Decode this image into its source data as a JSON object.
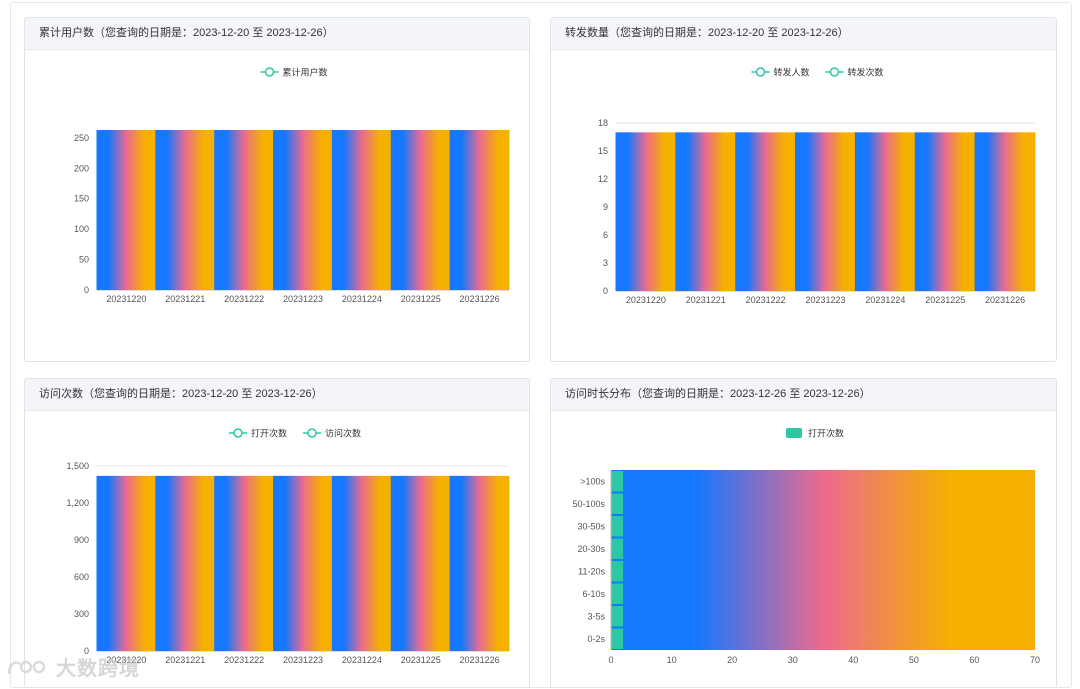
{
  "charts": {
    "c1": {
      "title": "累计用户数（您查询的日期是：2023-12-20 至 2023-12-26）",
      "chart_data": {
        "type": "bar",
        "categories": [
          "20231220",
          "20231221",
          "20231222",
          "20231223",
          "20231224",
          "20231225",
          "20231226"
        ],
        "series": [
          {
            "name": "累计用户数",
            "values": [
              263,
              263,
              263,
              263,
              263,
              263,
              263
            ]
          }
        ],
        "yticks": [
          "0",
          "50",
          "100",
          "150",
          "200",
          "250"
        ],
        "ylim": [
          0,
          263
        ],
        "legend_position": "top-center"
      }
    },
    "c2": {
      "title": "转发数量（您查询的日期是：2023-12-20 至 2023-12-26）",
      "chart_data": {
        "type": "bar",
        "categories": [
          "20231220",
          "20231221",
          "20231222",
          "20231223",
          "20231224",
          "20231225",
          "20231226"
        ],
        "series": [
          {
            "name": "转发人数",
            "values": [
              17,
              17,
              17,
              17,
              17,
              17,
              17
            ]
          },
          {
            "name": "转发次数",
            "values": [
              17,
              17,
              17,
              17,
              17,
              17,
              17
            ]
          }
        ],
        "yticks": [
          "0",
          "3",
          "6",
          "9",
          "12",
          "15",
          "18"
        ],
        "ylim": [
          0,
          18
        ],
        "legend_position": "top-center"
      }
    },
    "c3": {
      "title": "访问次数（您查询的日期是：2023-12-20 至 2023-12-26）",
      "chart_data": {
        "type": "bar",
        "categories": [
          "20231220",
          "20231221",
          "20231222",
          "20231223",
          "20231224",
          "20231225",
          "20231226"
        ],
        "series": [
          {
            "name": "打开次数",
            "values": [
              1420,
              1420,
              1420,
              1420,
              1420,
              1420,
              1420
            ]
          },
          {
            "name": "访问次数",
            "values": [
              1420,
              1420,
              1420,
              1420,
              1420,
              1420,
              1420
            ]
          }
        ],
        "yticks": [
          "0",
          "300",
          "600",
          "900",
          "1,200",
          "1,500"
        ],
        "ylim": [
          0,
          1500
        ],
        "legend_position": "top-center"
      }
    },
    "c4": {
      "title": "访问时长分布（您查询的日期是：2023-12-26 至 2023-12-26）",
      "chart_data": {
        "type": "bar",
        "orientation": "horizontal",
        "categories": [
          "0-2s",
          "3-5s",
          "6-10s",
          "11-20s",
          "20-30s",
          "30-50s",
          "50-100s",
          ">100s"
        ],
        "series": [
          {
            "name": "打开次数",
            "values": [
              2,
              2,
              2,
              2,
              2,
              2,
              2,
              2
            ]
          }
        ],
        "xticks": [
          "0",
          "10",
          "20",
          "30",
          "40",
          "50",
          "60",
          "70"
        ],
        "xlim": [
          0,
          70
        ],
        "legend_position": "top-center"
      }
    }
  },
  "colors": {
    "series": "#2ec7a3",
    "gradient_start": "#1677ff",
    "gradient_mid": "#ec6a8f",
    "gradient_end": "#f5b000",
    "grid": "#e6e6e6"
  },
  "watermark": {
    "text": "大数跨境",
    "icon": "logo-icon"
  }
}
